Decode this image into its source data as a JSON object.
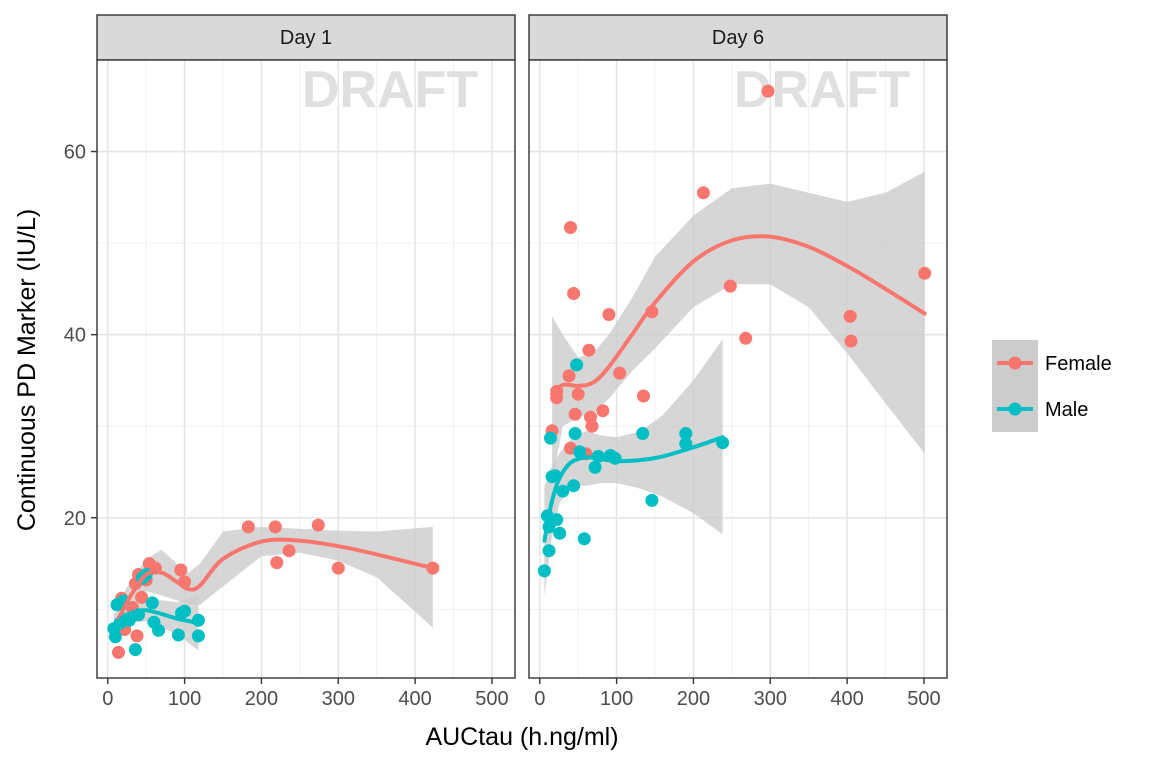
{
  "chart_data": {
    "type": "scatter",
    "xlabel": "AUCtau (h.ng/ml)",
    "ylabel": "Continuous PD Marker (IU/L)",
    "xlim": [
      -14,
      530
    ],
    "ylim": [
      2.5,
      70
    ],
    "x_ticks": [
      0,
      100,
      200,
      300,
      400,
      500
    ],
    "y_ticks": [
      20,
      40,
      60
    ],
    "grid": true,
    "legend_position": "right",
    "watermark": "DRAFT",
    "colors": {
      "Female": "#F8766D",
      "Male": "#00BFC4",
      "band": "#cccccc"
    },
    "legend": [
      {
        "name": "Female",
        "color": "#F8766D"
      },
      {
        "name": "Male",
        "color": "#00BFC4"
      }
    ],
    "panels": [
      {
        "label": "Day 1",
        "points": {
          "Female": [
            [
              14,
              5.3
            ],
            [
              18,
              11.2
            ],
            [
              22,
              7.8
            ],
            [
              28,
              9.0
            ],
            [
              32,
              10.2
            ],
            [
              36,
              12.8
            ],
            [
              38,
              7.1
            ],
            [
              40,
              13.8
            ],
            [
              44,
              11.3
            ],
            [
              50,
              13.2
            ],
            [
              54,
              15.0
            ],
            [
              62,
              14.5
            ],
            [
              95,
              14.3
            ],
            [
              100,
              13.0
            ],
            [
              183,
              19.0
            ],
            [
              218,
              19.0
            ],
            [
              220,
              15.1
            ],
            [
              236,
              16.4
            ],
            [
              274,
              19.2
            ],
            [
              300,
              14.5
            ],
            [
              423,
              14.5
            ]
          ],
          "Male": [
            [
              8,
              7.9
            ],
            [
              10,
              7.0
            ],
            [
              12,
              10.5
            ],
            [
              16,
              8.5
            ],
            [
              20,
              10.9
            ],
            [
              24,
              8.9
            ],
            [
              28,
              8.8
            ],
            [
              36,
              5.6
            ],
            [
              40,
              9.4
            ],
            [
              45,
              13.4
            ],
            [
              50,
              13.8
            ],
            [
              58,
              10.7
            ],
            [
              60,
              8.6
            ],
            [
              66,
              7.7
            ],
            [
              92,
              7.2
            ],
            [
              96,
              9.6
            ],
            [
              100,
              9.8
            ],
            [
              118,
              8.8
            ],
            [
              118,
              7.1
            ]
          ]
        },
        "fits": {
          "Female": [
            [
              14,
              9.0
            ],
            [
              30,
              11.5
            ],
            [
              50,
              13.8
            ],
            [
              70,
              14.0
            ],
            [
              90,
              13.0
            ],
            [
              105,
              12.2
            ],
            [
              120,
              12.6
            ],
            [
              150,
              15.5
            ],
            [
              200,
              17.4
            ],
            [
              250,
              17.5
            ],
            [
              300,
              16.9
            ],
            [
              350,
              16.0
            ],
            [
              423,
              14.5
            ]
          ],
          "Male": [
            [
              8,
              8.0
            ],
            [
              20,
              9.2
            ],
            [
              35,
              9.7
            ],
            [
              50,
              9.9
            ],
            [
              70,
              9.5
            ],
            [
              90,
              9.0
            ],
            [
              118,
              8.5
            ]
          ]
        },
        "bands": {
          "Female": {
            "x": [
              14,
              30,
              50,
              70,
              90,
              105,
              120,
              150,
              200,
              250,
              300,
              350,
              423
            ],
            "lower": [
              7.0,
              9.5,
              12.0,
              11.5,
              11.0,
              10.5,
              10.5,
              12.5,
              15.8,
              16.2,
              15.3,
              13.5,
              8.0
            ],
            "upper": [
              11.0,
              13.0,
              15.5,
              16.5,
              15.0,
              14.0,
              15.0,
              18.5,
              19.0,
              18.8,
              18.6,
              18.5,
              19.0
            ]
          },
          "Male": {
            "x": [
              8,
              20,
              35,
              50,
              70,
              90,
              118
            ],
            "lower": [
              6.5,
              8.0,
              8.6,
              8.7,
              8.0,
              7.3,
              5.5
            ],
            "upper": [
              9.5,
              10.4,
              10.8,
              11.1,
              11.0,
              10.8,
              11.5
            ]
          }
        }
      },
      {
        "label": "Day 6",
        "points": {
          "Female": [
            [
              16,
              29.5
            ],
            [
              22,
              33.8
            ],
            [
              22,
              33.1
            ],
            [
              38,
              35.5
            ],
            [
              40,
              51.7
            ],
            [
              40,
              27.6
            ],
            [
              44,
              44.5
            ],
            [
              46,
              31.3
            ],
            [
              50,
              33.5
            ],
            [
              60,
              27.0
            ],
            [
              64,
              38.3
            ],
            [
              66,
              31.0
            ],
            [
              68,
              30.0
            ],
            [
              82,
              31.7
            ],
            [
              90,
              42.2
            ],
            [
              104,
              35.8
            ],
            [
              135,
              33.3
            ],
            [
              146,
              42.5
            ],
            [
              213,
              55.5
            ],
            [
              248,
              45.3
            ],
            [
              268,
              39.6
            ],
            [
              297,
              66.6
            ],
            [
              404,
              42.0
            ],
            [
              405,
              39.3
            ],
            [
              501,
              46.7
            ]
          ],
          "Male": [
            [
              6,
              14.2
            ],
            [
              10,
              20.2
            ],
            [
              12,
              19.0
            ],
            [
              12,
              16.4
            ],
            [
              14,
              28.7
            ],
            [
              16,
              24.5
            ],
            [
              20,
              24.6
            ],
            [
              22,
              19.8
            ],
            [
              26,
              18.3
            ],
            [
              30,
              22.9
            ],
            [
              44,
              23.5
            ],
            [
              46,
              29.2
            ],
            [
              48,
              36.7
            ],
            [
              52,
              27.2
            ],
            [
              58,
              17.7
            ],
            [
              72,
              25.5
            ],
            [
              76,
              26.7
            ],
            [
              92,
              26.8
            ],
            [
              98,
              26.5
            ],
            [
              134,
              29.2
            ],
            [
              146,
              21.9
            ],
            [
              190,
              29.2
            ],
            [
              190,
              28.1
            ],
            [
              238,
              28.2
            ]
          ]
        },
        "fits": {
          "Female": [
            [
              16,
              33.5
            ],
            [
              30,
              34.5
            ],
            [
              50,
              34.4
            ],
            [
              70,
              34.8
            ],
            [
              90,
              36.5
            ],
            [
              120,
              40.0
            ],
            [
              150,
              43.5
            ],
            [
              200,
              48.0
            ],
            [
              250,
              50.3
            ],
            [
              300,
              50.7
            ],
            [
              350,
              49.6
            ],
            [
              400,
              47.5
            ],
            [
              450,
              45.0
            ],
            [
              501,
              42.3
            ]
          ],
          "Male": [
            [
              6,
              17.5
            ],
            [
              15,
              21.5
            ],
            [
              25,
              24.2
            ],
            [
              40,
              26.0
            ],
            [
              60,
              26.6
            ],
            [
              80,
              26.4
            ],
            [
              100,
              26.2
            ],
            [
              130,
              26.3
            ],
            [
              160,
              26.7
            ],
            [
              200,
              27.7
            ],
            [
              238,
              28.8
            ]
          ]
        },
        "bands": {
          "Female": {
            "x": [
              16,
              30,
              50,
              70,
              90,
              120,
              150,
              200,
              250,
              300,
              350,
              400,
              450,
              501
            ],
            "lower": [
              24.0,
              30.0,
              31.0,
              31.5,
              33.0,
              36.0,
              38.5,
              43.0,
              45.5,
              45.5,
              43.0,
              38.0,
              32.5,
              27.0
            ],
            "upper": [
              42.0,
              40.0,
              37.5,
              38.0,
              40.0,
              44.0,
              48.5,
              53.0,
              56.0,
              56.5,
              55.5,
              54.5,
              55.5,
              57.8
            ]
          },
          "Male": {
            "x": [
              6,
              15,
              25,
              40,
              60,
              80,
              100,
              130,
              160,
              200,
              238
            ],
            "lower": [
              11.5,
              17.5,
              21.5,
              23.5,
              23.5,
              23.8,
              23.8,
              23.2,
              22.3,
              20.5,
              18.2
            ],
            "upper": [
              23.5,
              25.5,
              27.0,
              28.5,
              29.5,
              29.0,
              28.8,
              29.4,
              31.2,
              35.0,
              39.5
            ]
          }
        }
      }
    ]
  }
}
